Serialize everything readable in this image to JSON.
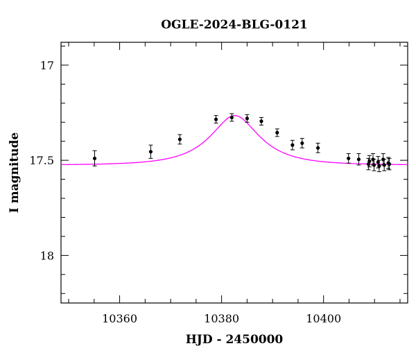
{
  "chart_data": {
    "type": "scatter",
    "title": "OGLE-2024-BLG-0121",
    "xlabel": "HJD - 2450000",
    "ylabel": "I magnitude",
    "xlim": [
      10348.5,
      10416.5
    ],
    "ylim": [
      18.25,
      16.88
    ],
    "y_inverted": true,
    "x_major_ticks": [
      10360,
      10380,
      10400
    ],
    "x_tick_labels": [
      "10360",
      "10380",
      "10400"
    ],
    "x_minor_step": 5,
    "y_major_ticks": [
      17,
      17.5,
      18
    ],
    "y_tick_labels": [
      "17",
      "17.5",
      "18"
    ],
    "y_minor_step": 0.1,
    "grid": false,
    "model": {
      "name": "microlensing fit",
      "color": "#ff00ff",
      "t0": 10382.6,
      "peak_mag": 17.265,
      "baseline_mag": 17.525,
      "tE": 9.5,
      "u0": 0.5
    },
    "series": [
      {
        "name": "OGLE I-band",
        "color": "#000000",
        "points": [
          {
            "x": 10355.1,
            "y": 17.49,
            "err": 0.04
          },
          {
            "x": 10366.1,
            "y": 17.455,
            "err": 0.035
          },
          {
            "x": 10371.8,
            "y": 17.39,
            "err": 0.025
          },
          {
            "x": 10378.9,
            "y": 17.285,
            "err": 0.02
          },
          {
            "x": 10382.0,
            "y": 17.275,
            "err": 0.02
          },
          {
            "x": 10385.0,
            "y": 17.28,
            "err": 0.02
          },
          {
            "x": 10387.8,
            "y": 17.295,
            "err": 0.02
          },
          {
            "x": 10390.9,
            "y": 17.355,
            "err": 0.02
          },
          {
            "x": 10393.9,
            "y": 17.42,
            "err": 0.025
          },
          {
            "x": 10395.8,
            "y": 17.41,
            "err": 0.025
          },
          {
            "x": 10398.9,
            "y": 17.435,
            "err": 0.025
          },
          {
            "x": 10404.9,
            "y": 17.49,
            "err": 0.025
          },
          {
            "x": 10406.9,
            "y": 17.495,
            "err": 0.03
          },
          {
            "x": 10408.8,
            "y": 17.52,
            "err": 0.03
          },
          {
            "x": 10409.0,
            "y": 17.505,
            "err": 0.03
          },
          {
            "x": 10409.7,
            "y": 17.495,
            "err": 0.03
          },
          {
            "x": 10409.9,
            "y": 17.525,
            "err": 0.03
          },
          {
            "x": 10410.7,
            "y": 17.51,
            "err": 0.03
          },
          {
            "x": 10410.9,
            "y": 17.53,
            "err": 0.03
          },
          {
            "x": 10411.7,
            "y": 17.495,
            "err": 0.03
          },
          {
            "x": 10411.9,
            "y": 17.525,
            "err": 0.03
          },
          {
            "x": 10412.7,
            "y": 17.515,
            "err": 0.03
          },
          {
            "x": 10412.9,
            "y": 17.52,
            "err": 0.03
          }
        ]
      }
    ]
  }
}
